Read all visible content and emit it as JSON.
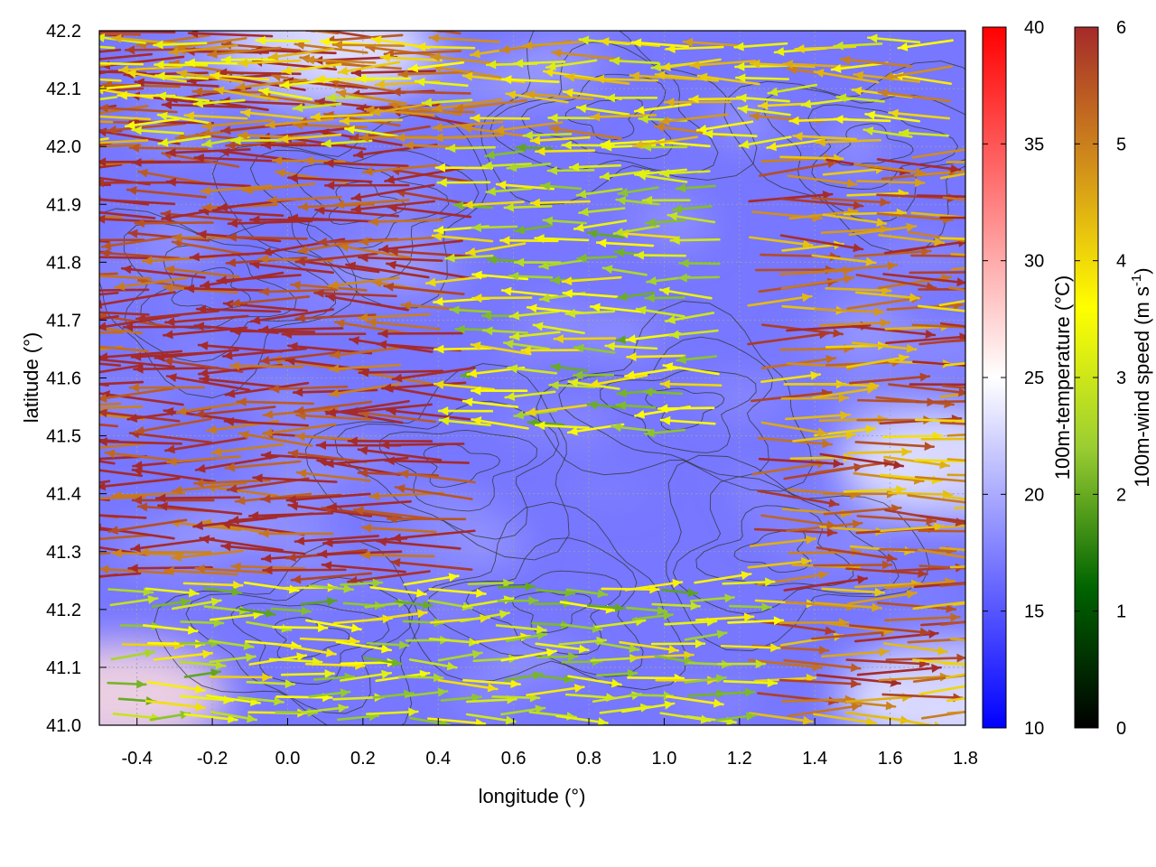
{
  "chart_data": {
    "type": "heatmap",
    "title": "",
    "xlabel": "longitude (°)",
    "ylabel": "latitude (°)",
    "xlim": [
      -0.5,
      1.8
    ],
    "ylim": [
      41.0,
      42.2
    ],
    "x_ticks": [
      "-0.4",
      "-0.2",
      "0.0",
      "0.2",
      "0.4",
      "0.6",
      "0.8",
      "1.0",
      "1.2",
      "1.4",
      "1.6",
      "1.8"
    ],
    "y_ticks": [
      "41.0",
      "41.1",
      "41.2",
      "41.3",
      "41.4",
      "41.5",
      "41.6",
      "41.7",
      "41.8",
      "41.9",
      "42.0",
      "42.1",
      "42.2"
    ],
    "grid": true,
    "overlay_fields": [
      "100m temperature (colour shading)",
      "100m wind vectors (arrows coloured by speed)",
      "terrain height (black contours)"
    ],
    "temperature_colorbar": {
      "label": "100m-temperature (°C)",
      "range": [
        10,
        40
      ],
      "ticks": [
        "10",
        "15",
        "20",
        "25",
        "30",
        "35",
        "40"
      ],
      "colors": [
        "#0000ff",
        "#ffffff",
        "#ff0000"
      ]
    },
    "wind_colorbar": {
      "label_main": "100m-wind speed (m s",
      "label_sup": "-1",
      "label_end": ")",
      "range": [
        0,
        6
      ],
      "ticks": [
        "0",
        "1",
        "2",
        "3",
        "4",
        "5",
        "6"
      ],
      "colors": [
        "#000000",
        "#006400",
        "#9acd32",
        "#ffff00",
        "#d2901a",
        "#a52a2a"
      ]
    },
    "temperature_field_summary": {
      "background_c": 17,
      "warm_spots": [
        {
          "lon": -0.45,
          "lat": 41.05,
          "temp_c": 27
        },
        {
          "lon": 1.75,
          "lat": 41.05,
          "temp_c": 24
        },
        {
          "lon": 1.75,
          "lat": 41.45,
          "temp_c": 24
        },
        {
          "lon": 0.1,
          "lat": 42.17,
          "temp_c": 24
        }
      ]
    },
    "wind_regimes": [
      {
        "region": "west",
        "lon_range": [
          -0.5,
          0.5
        ],
        "lat_range": [
          41.25,
          42.2
        ],
        "direction_to": "west",
        "speed_ms": 6
      },
      {
        "region": "valley",
        "lon_range": [
          0.5,
          1.2
        ],
        "lat_range": [
          41.5,
          42.0
        ],
        "direction_to": "west",
        "speed_ms": 3
      },
      {
        "region": "east",
        "lon_range": [
          1.2,
          1.8
        ],
        "lat_range": [
          41.0,
          42.0
        ],
        "direction_to": "east",
        "speed_ms": 5
      },
      {
        "region": "south",
        "lon_range": [
          -0.5,
          1.2
        ],
        "lat_range": [
          41.0,
          41.25
        ],
        "direction_to": "east",
        "speed_ms": 3
      },
      {
        "region": "north",
        "lon_range": [
          -0.5,
          1.8
        ],
        "lat_range": [
          42.0,
          42.2
        ],
        "direction_to": "west",
        "speed_ms": 4
      }
    ]
  }
}
